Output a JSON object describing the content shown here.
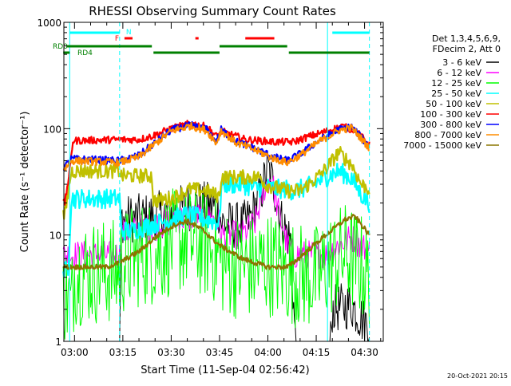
{
  "chart_data": {
    "type": "line",
    "title": "RHESSI Observing Summary Count Rates",
    "xlabel": "Start Time (11-Sep-04 02:56:42)",
    "ylabel": "Count Rate (s⁻¹ detector⁻¹)",
    "yscale": "log",
    "ylim": [
      1,
      1000
    ],
    "xlim_minutes": [
      -4.3,
      35.9
    ],
    "x_start": "11-Sep-04 02:56:42",
    "x_ticks": [
      {
        "label": "03:00",
        "t": 0
      },
      {
        "label": "03:15",
        "t": 15
      },
      {
        "label": "03:30",
        "t": 30
      },
      {
        "label": "03:45",
        "t": 45
      },
      {
        "label": "04:00",
        "t": 60
      },
      {
        "label": "04:15",
        "t": 75
      },
      {
        "label": "04:30",
        "t": 90
      }
    ],
    "y_ticks": [
      {
        "label": "1",
        "v": 1
      },
      {
        "label": "10",
        "v": 10
      },
      {
        "label": "100",
        "v": 100
      },
      {
        "label": "1000",
        "v": 1000
      }
    ],
    "legend": {
      "placement": "right",
      "header": [
        "Det 1,3,4,5,6,9,",
        "FDecim 2, Att 0"
      ]
    },
    "series": [
      {
        "name": "3 - 6 keV",
        "color": "#000000",
        "knots": [
          [
            -3,
            0.3
          ],
          [
            14,
            0.3
          ],
          [
            14.5,
            14
          ],
          [
            25,
            15
          ],
          [
            30,
            17
          ],
          [
            38,
            19
          ],
          [
            42,
            19
          ],
          [
            45,
            17
          ],
          [
            45.5,
            13
          ],
          [
            52,
            12
          ],
          [
            55,
            15
          ],
          [
            58,
            26
          ],
          [
            60,
            42
          ],
          [
            62,
            28
          ],
          [
            64,
            14
          ],
          [
            67,
            9
          ],
          [
            69,
            0.5
          ],
          [
            79,
            0.5
          ],
          [
            80,
            2
          ],
          [
            86,
            2.2
          ],
          [
            90,
            1.5
          ],
          [
            91.5,
            1.5
          ]
        ],
        "noise": 0.1
      },
      {
        "name": "6 - 12 keV",
        "color": "#ff00ff",
        "knots": [
          [
            -3,
            6.5
          ],
          [
            14,
            6.5
          ],
          [
            14.5,
            10.5
          ],
          [
            25,
            12
          ],
          [
            32,
            14
          ],
          [
            38,
            15
          ],
          [
            43,
            14
          ],
          [
            45,
            13
          ],
          [
            45.5,
            10
          ],
          [
            52,
            10
          ],
          [
            56,
            13
          ],
          [
            59,
            28
          ],
          [
            61,
            35
          ],
          [
            63,
            18
          ],
          [
            66,
            8
          ],
          [
            68,
            6.5
          ],
          [
            78,
            6.6
          ],
          [
            82,
            8
          ],
          [
            86,
            9.5
          ],
          [
            89,
            8
          ],
          [
            91.5,
            7
          ]
        ],
        "noise": 0.06
      },
      {
        "name": "12 - 25 keV",
        "color": "#00ff00",
        "knots": [
          [
            -3,
            3
          ],
          [
            -1,
            2
          ],
          [
            0,
            4.5
          ],
          [
            14,
            4.5
          ],
          [
            14.5,
            5.5
          ],
          [
            20,
            6.5
          ],
          [
            26,
            7
          ],
          [
            30,
            8.5
          ],
          [
            35,
            9
          ],
          [
            40,
            8
          ],
          [
            44,
            7
          ],
          [
            45.5,
            5.5
          ],
          [
            52,
            5
          ],
          [
            57,
            5
          ],
          [
            60,
            5.5
          ],
          [
            63,
            5
          ],
          [
            66,
            4.5
          ],
          [
            72,
            4
          ],
          [
            76,
            4
          ],
          [
            78,
            5
          ],
          [
            84,
            6.5
          ],
          [
            88,
            5.5
          ],
          [
            91.5,
            4
          ]
        ],
        "noise": 0.22
      },
      {
        "name": "25 - 50 keV",
        "color": "#00ffff",
        "knots": [
          [
            -3,
            4.5
          ],
          [
            -2,
            5
          ],
          [
            -1,
            22
          ],
          [
            1,
            22
          ],
          [
            14,
            22
          ],
          [
            14.5,
            11
          ],
          [
            18,
            11
          ],
          [
            24,
            12.5
          ],
          [
            30,
            14
          ],
          [
            35,
            15.5
          ],
          [
            41,
            14
          ],
          [
            45,
            13
          ],
          [
            45.5,
            30
          ],
          [
            52,
            30
          ],
          [
            55,
            28
          ],
          [
            60,
            28
          ],
          [
            63,
            27
          ],
          [
            66,
            27
          ],
          [
            68,
            26
          ],
          [
            72,
            28
          ],
          [
            74,
            30
          ],
          [
            78,
            35
          ],
          [
            82,
            40
          ],
          [
            86,
            34
          ],
          [
            89,
            24
          ],
          [
            91.5,
            20
          ]
        ],
        "noise": 0.04
      },
      {
        "name": "50 - 100 keV",
        "color": "#c0c000",
        "knots": [
          [
            -3,
            15
          ],
          [
            -1,
            40
          ],
          [
            1,
            40
          ],
          [
            14,
            40
          ],
          [
            14.5,
            36
          ],
          [
            24,
            36
          ],
          [
            24.5,
            21
          ],
          [
            30,
            22
          ],
          [
            36,
            27
          ],
          [
            41,
            26
          ],
          [
            45,
            23
          ],
          [
            45.5,
            35
          ],
          [
            58,
            35
          ],
          [
            59,
            30
          ],
          [
            66,
            26
          ],
          [
            70,
            26
          ],
          [
            74,
            32
          ],
          [
            78,
            42
          ],
          [
            82,
            60
          ],
          [
            86,
            46
          ],
          [
            89,
            30
          ],
          [
            91.5,
            27
          ]
        ],
        "noise": 0.03
      },
      {
        "name": "100 - 300 keV",
        "color": "#ff0000",
        "knots": [
          [
            -3,
            20
          ],
          [
            -1.5,
            40
          ],
          [
            -0.5,
            77
          ],
          [
            14,
            79
          ],
          [
            20,
            79
          ],
          [
            24,
            85
          ],
          [
            30,
            100
          ],
          [
            36,
            112
          ],
          [
            41,
            104
          ],
          [
            44,
            85
          ],
          [
            45,
            90
          ],
          [
            45.5,
            95
          ],
          [
            53,
            79
          ],
          [
            62,
            75
          ],
          [
            66,
            75
          ],
          [
            68,
            75
          ],
          [
            72,
            83
          ],
          [
            78,
            94
          ],
          [
            83,
            105
          ],
          [
            87,
            97
          ],
          [
            91.5,
            70
          ]
        ],
        "noise": 0.015
      },
      {
        "name": "300 - 800 keV",
        "color": "#0000ff",
        "knots": [
          [
            -3,
            44
          ],
          [
            -1,
            52
          ],
          [
            14,
            50
          ],
          [
            20,
            56
          ],
          [
            24,
            70
          ],
          [
            30,
            97
          ],
          [
            36,
            108
          ],
          [
            41,
            98
          ],
          [
            44,
            75
          ],
          [
            45.5,
            98
          ],
          [
            50,
            76
          ],
          [
            56,
            65
          ],
          [
            62,
            54
          ],
          [
            66,
            50
          ],
          [
            70,
            58
          ],
          [
            76,
            78
          ],
          [
            82,
            98
          ],
          [
            86,
            104
          ],
          [
            91.5,
            68
          ]
        ],
        "noise": 0.015
      },
      {
        "name": "800 - 7000 keV",
        "color": "#ff8c00",
        "knots": [
          [
            -3,
            42
          ],
          [
            -1,
            50
          ],
          [
            14,
            48
          ],
          [
            20,
            54
          ],
          [
            24,
            68
          ],
          [
            30,
            95
          ],
          [
            36,
            106
          ],
          [
            41,
            96
          ],
          [
            44,
            73
          ],
          [
            45.5,
            96
          ],
          [
            50,
            74
          ],
          [
            56,
            63
          ],
          [
            62,
            52
          ],
          [
            66,
            48
          ],
          [
            70,
            56
          ],
          [
            76,
            76
          ],
          [
            82,
            96
          ],
          [
            86,
            102
          ],
          [
            91.5,
            66
          ]
        ],
        "noise": 0.015
      },
      {
        "name": "7000 - 15000 keV",
        "color": "#8b7500",
        "knots": [
          [
            -3,
            5
          ],
          [
            10,
            5
          ],
          [
            14,
            5.5
          ],
          [
            20,
            7
          ],
          [
            26,
            10
          ],
          [
            31,
            12.5
          ],
          [
            35,
            13.5
          ],
          [
            40,
            11
          ],
          [
            45,
            8
          ],
          [
            52,
            6
          ],
          [
            60,
            5
          ],
          [
            66,
            5
          ],
          [
            68,
            5.5
          ],
          [
            72,
            7
          ],
          [
            78,
            10
          ],
          [
            84,
            14
          ],
          [
            87,
            15
          ],
          [
            91.5,
            10
          ]
        ],
        "noise": 0.01
      }
    ],
    "attenuator_bar": {
      "name": "Att",
      "color": "#00ffff",
      "intervals": [
        [
          -1.5,
          14
        ]
      ],
      "intervals2": [
        [
          80,
          91.5
        ]
      ]
    },
    "flags": [
      {
        "name": "N",
        "color": "#00ffff",
        "intervals": [],
        "marker_t": 15.5
      },
      {
        "name": "F",
        "color": "#ff0000",
        "intervals": [
          [
            15.5,
            18
          ],
          [
            37.5,
            38.5
          ],
          [
            53,
            62
          ]
        ]
      },
      {
        "name": "RD0",
        "color": "#008000",
        "intervals": [
          [
            -2.5,
            24
          ],
          [
            45,
            66
          ]
        ]
      },
      {
        "name": "RD4",
        "color": "#008000",
        "intervals": [
          [
            -3.5,
            -1.5
          ],
          [
            24.5,
            45
          ],
          [
            66.5,
            91.5
          ]
        ]
      }
    ],
    "cyan_markers_t": [
      -1.5,
      14,
      78.5,
      91.5
    ],
    "timestamp": "20-Oct-2021 20:15"
  }
}
